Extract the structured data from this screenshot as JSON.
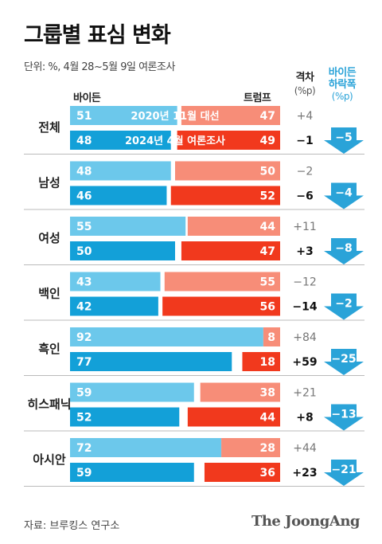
{
  "chart_data": {
    "type": "bar",
    "title": "그룹별 표심 변화",
    "subtitle": "단위: %, 4월 28~5월 9일 여론조사",
    "legend": {
      "biden": "바이든",
      "trump": "트럼프"
    },
    "gap_header": {
      "label": "격차",
      "unit": "(%p)"
    },
    "drop_header": {
      "line1": "바이든",
      "line2": "하락폭",
      "unit": "(%p)"
    },
    "series_periods": [
      "2020년 11월 대선",
      "2024년 4월 여론조사"
    ],
    "categories": [
      "전체",
      "남성",
      "여성",
      "백인",
      "흑인",
      "히스패닉",
      "아시안"
    ],
    "groups": [
      {
        "name": "전체",
        "rows": [
          {
            "biden": 51,
            "trump": 47,
            "gap": "+4"
          },
          {
            "biden": 48,
            "trump": 49,
            "gap": "−1"
          }
        ],
        "drop": "−5"
      },
      {
        "name": "남성",
        "rows": [
          {
            "biden": 48,
            "trump": 50,
            "gap": "−2"
          },
          {
            "biden": 46,
            "trump": 52,
            "gap": "−6"
          }
        ],
        "drop": "−4"
      },
      {
        "name": "여성",
        "rows": [
          {
            "biden": 55,
            "trump": 44,
            "gap": "+11"
          },
          {
            "biden": 50,
            "trump": 47,
            "gap": "+3"
          }
        ],
        "drop": "−8"
      },
      {
        "name": "백인",
        "rows": [
          {
            "biden": 43,
            "trump": 55,
            "gap": "−12"
          },
          {
            "biden": 42,
            "trump": 56,
            "gap": "−14"
          }
        ],
        "drop": "−2"
      },
      {
        "name": "흑인",
        "rows": [
          {
            "biden": 92,
            "trump": 8,
            "gap": "+84"
          },
          {
            "biden": 77,
            "trump": 18,
            "gap": "+59"
          }
        ],
        "drop": "−25"
      },
      {
        "name": "히스패닉",
        "rows": [
          {
            "biden": 59,
            "trump": 38,
            "gap": "+21"
          },
          {
            "biden": 52,
            "trump": 44,
            "gap": "+8"
          }
        ],
        "drop": "−13"
      },
      {
        "name": "아시안",
        "rows": [
          {
            "biden": 72,
            "trump": 28,
            "gap": "+44"
          },
          {
            "biden": 59,
            "trump": 36,
            "gap": "+23"
          }
        ],
        "drop": "−21"
      }
    ],
    "colors": {
      "biden_2020": "#6cc8eb",
      "biden_2024": "#13a0d8",
      "trump_2020": "#f78d78",
      "trump_2024": "#f1391d",
      "drop_arrow": "#2aa3d8"
    }
  },
  "footer": {
    "source": "자료: 브루킹스 연구소",
    "brand": "The JoongAng"
  }
}
